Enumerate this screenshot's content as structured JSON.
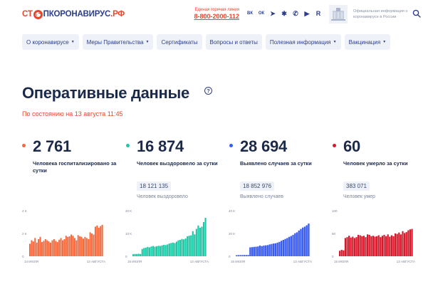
{
  "header": {
    "logo": {
      "part1": "СТ",
      "part2": "ПКОРОНАВИРУС",
      "part3": ".РФ"
    },
    "hotline_label": "Единая горячая линия",
    "hotline_phone": "8-800-2000-112",
    "socials": [
      {
        "icon": "vk-icon",
        "glyph": "ВК"
      },
      {
        "icon": "ok-icon",
        "glyph": "ОК"
      },
      {
        "icon": "telegram-icon",
        "glyph": "➤"
      },
      {
        "icon": "yandex-zen-icon",
        "glyph": "✱"
      },
      {
        "icon": "viber-icon",
        "glyph": "✆"
      },
      {
        "icon": "youtube-icon",
        "glyph": "▶"
      },
      {
        "icon": "rutube-icon",
        "glyph": "R"
      }
    ],
    "gov_text": "Официальная информация о коронавирусе в России"
  },
  "nav": [
    {
      "label": "О коронавирусе",
      "dropdown": true
    },
    {
      "label": "Меры Правительства",
      "dropdown": true
    },
    {
      "label": "Сертификаты",
      "dropdown": false
    },
    {
      "label": "Вопросы и ответы",
      "dropdown": false
    },
    {
      "label": "Полезная информация",
      "dropdown": true
    },
    {
      "label": "Вакцинация",
      "dropdown": true
    }
  ],
  "page": {
    "title": "Оперативные данные",
    "as_of": "По состоянию на 13 августа 11:45"
  },
  "colors": {
    "hospitalized": "#f4683b",
    "recovered": "#1cc7a5",
    "cases": "#3a5cf0",
    "deaths": "#d8182a",
    "accent": "#e8452c",
    "brand": "#2c3e8c"
  },
  "stats": [
    {
      "key": "hospitalized",
      "value": "2 761",
      "label": "Человека госпитализировано за сутки",
      "total": "",
      "total_label": ""
    },
    {
      "key": "recovered",
      "value": "16 874",
      "label": "Человек выздоровело за сутки",
      "total": "18 121 135",
      "total_label": "Человек выздоровело"
    },
    {
      "key": "cases",
      "value": "28 694",
      "label": "Выявлено случаев за сутки",
      "total": "18 852 976",
      "total_label": "Выявлено случаев"
    },
    {
      "key": "deaths",
      "value": "60",
      "label": "Человек умерло за сутки",
      "total": "383 071",
      "total_label": "Человек умер"
    }
  ],
  "chart_data": [
    {
      "type": "bar",
      "yticks": [
        "4 K",
        "2 K",
        "0"
      ],
      "ylim": [
        0,
        4000
      ],
      "xlabels": [
        "14 ИЮЛЯ",
        "13 АВГУСТА"
      ],
      "values": [
        1100,
        1400,
        1300,
        1600,
        1200,
        1500,
        1700,
        1250,
        1350,
        1500,
        1400,
        1300,
        1200,
        1400,
        1500,
        1350,
        1250,
        1450,
        1600,
        1400,
        1500,
        1800,
        1700,
        1750,
        1900,
        1800,
        1600,
        1400,
        1850,
        1750,
        1700,
        1550,
        1700,
        1600,
        1500,
        2100,
        2000,
        1900,
        2600,
        2700,
        2500,
        2650,
        2761
      ]
    },
    {
      "type": "bar",
      "yticks": [
        "20 K",
        "10 K",
        "0"
      ],
      "ylim": [
        0,
        20000
      ],
      "xlabels": [
        "15 ИЮЛЯ",
        "13 АВГУСТА"
      ],
      "values": [
        900,
        1000,
        1000,
        1100,
        1000,
        3200,
        3600,
        3800,
        4100,
        3900,
        4300,
        4500,
        4200,
        4400,
        4600,
        4500,
        4800,
        5000,
        4900,
        5200,
        5600,
        5800,
        6000,
        5800,
        6400,
        7000,
        7200,
        7600,
        7400,
        7800,
        8800,
        9000,
        9200,
        11000,
        9600,
        12000,
        13500,
        12500,
        13000,
        15000,
        16874
      ]
    },
    {
      "type": "bar",
      "yticks": [
        "40 K",
        "20 K",
        "0"
      ],
      "ylim": [
        0,
        40000
      ],
      "xlabels": [
        "15 ИЮЛЯ",
        "13 АВГУСТА"
      ],
      "values": [
        900,
        1000,
        1050,
        1000,
        1100,
        1050,
        1100,
        7800,
        8000,
        8200,
        8400,
        8600,
        9400,
        8900,
        9400,
        9600,
        9800,
        10400,
        10800,
        11200,
        11400,
        12000,
        12600,
        13600,
        14400,
        15200,
        16000,
        17000,
        17800,
        18800,
        20200,
        21000,
        22600,
        24000,
        25200,
        26000,
        27200,
        28694
      ]
    },
    {
      "type": "bar",
      "yticks": [
        "100",
        "50",
        "0"
      ],
      "ylim": [
        0,
        100
      ],
      "xlabels": [
        "15 ИЮЛЯ",
        "13 АВГУСТА"
      ],
      "values": [
        12,
        14,
        13,
        40,
        42,
        45,
        41,
        43,
        40,
        42,
        47,
        46,
        44,
        45,
        42,
        48,
        47,
        44,
        45,
        43,
        44,
        46,
        42,
        45,
        47,
        44,
        48,
        43,
        46,
        44,
        50,
        49,
        52,
        48,
        55,
        51,
        53,
        57,
        59,
        60
      ]
    }
  ]
}
